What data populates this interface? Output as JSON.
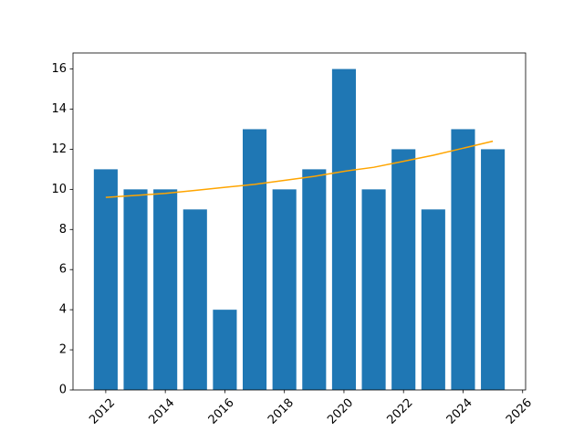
{
  "chart_data": {
    "type": "bar",
    "x": [
      2012,
      2013,
      2014,
      2015,
      2016,
      2017,
      2018,
      2019,
      2020,
      2021,
      2022,
      2023,
      2024,
      2025
    ],
    "values": [
      11,
      10,
      10,
      9,
      4,
      13,
      10,
      11,
      16,
      10,
      12,
      9,
      13,
      12
    ],
    "color": "#1f77b4",
    "trend": {
      "color": "#ffa500",
      "values": [
        9.6,
        9.7,
        9.8,
        9.95,
        10.1,
        10.25,
        10.45,
        10.65,
        10.9,
        11.1,
        11.4,
        11.7,
        12.05,
        12.4
      ]
    },
    "xlim": [
      2010.9,
      2026.1
    ],
    "xticks": [
      2012,
      2014,
      2016,
      2018,
      2020,
      2022,
      2024,
      2026
    ],
    "ylim": [
      0,
      16.8
    ],
    "yticks": [
      0,
      2,
      4,
      6,
      8,
      10,
      12,
      14,
      16
    ]
  }
}
